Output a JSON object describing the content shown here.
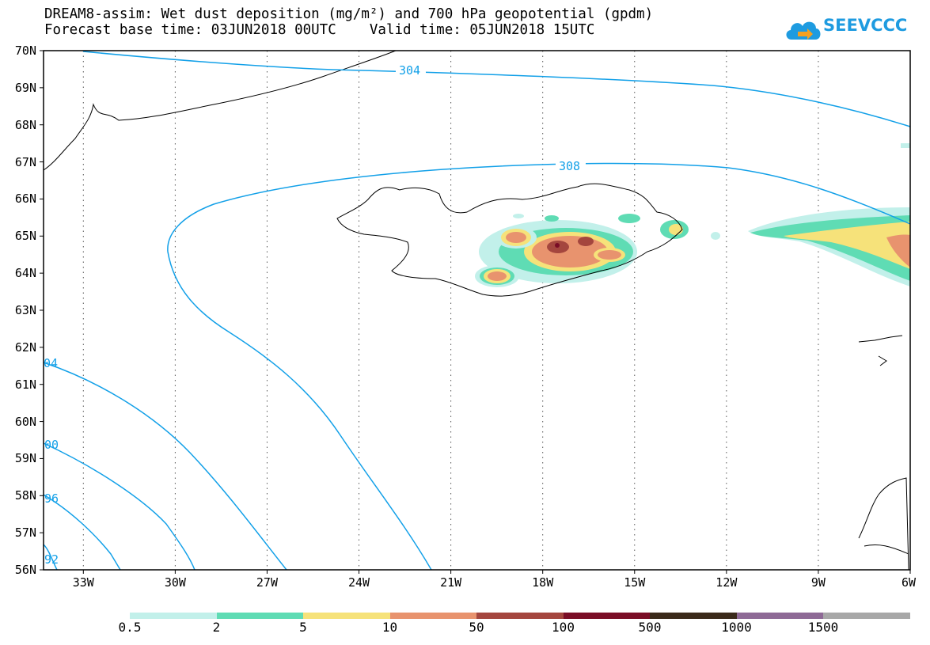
{
  "header": {
    "title_line1": "DREAM8-assim: Wet dust deposition (mg/m²) and 700 hPa geopotential (gpdm)",
    "title_line2": "Forecast base time: 03JUN2018 00UTC    Valid time: 05JUN2018 15UTC"
  },
  "logo": {
    "text": "SEEVCCC",
    "icon": "cloud-arrow-icon",
    "color": "#1e9be0"
  },
  "axes": {
    "lat_labels": [
      "70N",
      "69N",
      "68N",
      "67N",
      "66N",
      "65N",
      "64N",
      "63N",
      "62N",
      "61N",
      "60N",
      "59N",
      "58N",
      "57N",
      "56N"
    ],
    "lon_labels": [
      "33W",
      "30W",
      "27W",
      "24W",
      "21W",
      "18W",
      "15W",
      "12W",
      "9W",
      "6W"
    ],
    "lon_range": [
      -34.3,
      -6
    ],
    "lat_range": [
      56,
      70
    ],
    "grid": "dotted"
  },
  "contours": {
    "color": "#12a0e8",
    "labels": [
      "304",
      "308",
      "04",
      "00",
      "96",
      "92"
    ]
  },
  "colorbar": {
    "labels": [
      "0.5",
      "2",
      "5",
      "10",
      "50",
      "100",
      "500",
      "1000",
      "1500"
    ],
    "colors": [
      "#c2f0ea",
      "#5fdcb4",
      "#f6e27a",
      "#e8936e",
      "#a4463e",
      "#7a0d26",
      "#3a2a1a",
      "#8e6a96",
      "#a8a8a8"
    ]
  }
}
